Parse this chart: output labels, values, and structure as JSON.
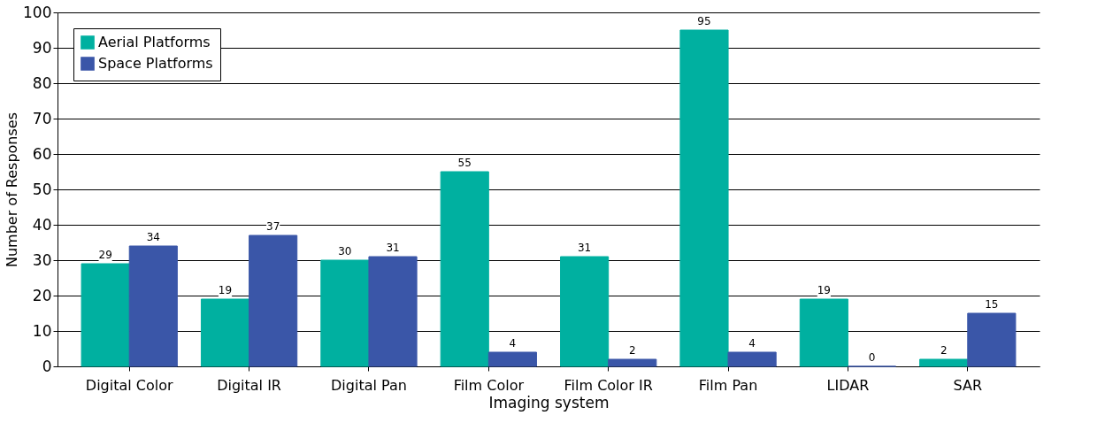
{
  "chart_data": {
    "type": "bar",
    "xlabel": "Imaging system",
    "ylabel": "Number of Responses",
    "categories": [
      "Digital Color",
      "Digital IR",
      "Digital Pan",
      "Film Color",
      "Film Color IR",
      "Film Pan",
      "LIDAR",
      "SAR"
    ],
    "series": [
      {
        "name": "Aerial Platforms",
        "color": "#00b0a0",
        "values": [
          29,
          19,
          30,
          55,
          31,
          95,
          19,
          2
        ]
      },
      {
        "name": "Space Platforms",
        "color": "#3a56a8",
        "values": [
          34,
          37,
          31,
          4,
          2,
          4,
          0,
          15
        ]
      }
    ],
    "ylim": [
      0,
      100
    ],
    "yticks": [
      0,
      10,
      20,
      30,
      40,
      50,
      60,
      70,
      80,
      90,
      100
    ],
    "grid": "y",
    "legend": "top left",
    "data_labels": true
  }
}
